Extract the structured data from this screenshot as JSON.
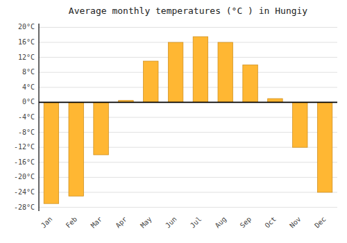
{
  "chart_data": {
    "type": "bar",
    "title": "Average monthly temperatures (°C ) in Hungiy",
    "categories": [
      "Jan",
      "Feb",
      "Mar",
      "Apr",
      "May",
      "Jun",
      "Jul",
      "Aug",
      "Sep",
      "Oct",
      "Nov",
      "Dec"
    ],
    "values": [
      -27,
      -25,
      -14,
      0.5,
      11,
      16,
      17.5,
      16,
      10,
      1,
      -12,
      -24
    ],
    "color": "#FFB733",
    "ylim": [
      -29,
      21
    ],
    "yticks": [
      {
        "value": -28,
        "label": "-28°C"
      },
      {
        "value": -24,
        "label": "-24°C"
      },
      {
        "value": -20,
        "label": "-20°C"
      },
      {
        "value": -16,
        "label": "-16°C"
      },
      {
        "value": -12,
        "label": "-12°C"
      },
      {
        "value": -8,
        "label": "-8°C"
      },
      {
        "value": -4,
        "label": "-4°C"
      },
      {
        "value": 0,
        "label": "0°C"
      },
      {
        "value": 4,
        "label": "4°C"
      },
      {
        "value": 8,
        "label": "8°C"
      },
      {
        "value": 12,
        "label": "12°C"
      },
      {
        "value": 16,
        "label": "16°C"
      },
      {
        "value": 20,
        "label": "20°C"
      }
    ],
    "grid": true
  }
}
